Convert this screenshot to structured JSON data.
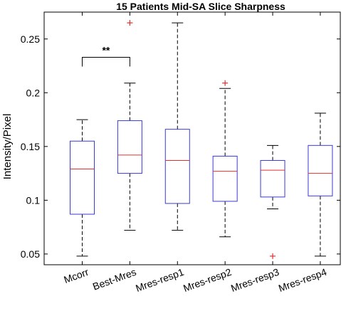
{
  "chart_data": {
    "type": "boxplot",
    "title": "15 Patients Mid-SA Slice Sharpness",
    "ylabel": "Intensity/Pixel",
    "ylim": [
      0.04,
      0.275
    ],
    "yticks": [
      0.05,
      0.1,
      0.15,
      0.2,
      0.25
    ],
    "ytick_labels": [
      "0.05",
      "0.1",
      "0.15",
      "0.2",
      "0.25"
    ],
    "grid": false,
    "categories": [
      "Mcorr",
      "Best-Mres",
      "Mres-resp1",
      "Mres-resp2",
      "Mres-resp3",
      "Mres-resp4"
    ],
    "boxes": [
      {
        "min": 0.048,
        "q1": 0.087,
        "median": 0.129,
        "q3": 0.155,
        "max": 0.175,
        "outliers": []
      },
      {
        "min": 0.072,
        "q1": 0.125,
        "median": 0.142,
        "q3": 0.174,
        "max": 0.209,
        "outliers": [
          0.265
        ]
      },
      {
        "min": 0.072,
        "q1": 0.097,
        "median": 0.137,
        "q3": 0.166,
        "max": 0.265,
        "outliers": []
      },
      {
        "min": 0.066,
        "q1": 0.099,
        "median": 0.127,
        "q3": 0.141,
        "max": 0.204,
        "outliers": [
          0.209
        ]
      },
      {
        "min": 0.092,
        "q1": 0.103,
        "median": 0.128,
        "q3": 0.137,
        "max": 0.151,
        "outliers": [
          0.048
        ]
      },
      {
        "min": 0.048,
        "q1": 0.104,
        "median": 0.125,
        "q3": 0.151,
        "max": 0.181,
        "outliers": []
      }
    ],
    "significance": {
      "from": 0,
      "to": 1,
      "y": 0.233,
      "label": "**"
    },
    "colors": {
      "box": "#3a3ad6",
      "median": "#e03030",
      "whisker": "#000000",
      "outlier": "#e03030",
      "axis": "#000000"
    }
  }
}
